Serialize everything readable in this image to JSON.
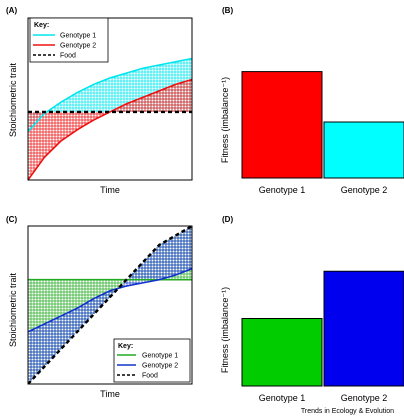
{
  "figure": {
    "credit": "Trends in Ecology & Evolution"
  },
  "chart_data": [
    {
      "panel": "(A)",
      "type": "line",
      "xlabel": "Time",
      "ylabel": "Stoichiometric trait",
      "legend_title": "Key:",
      "legend_position": "top-left",
      "x": [
        0,
        0.1,
        0.2,
        0.3,
        0.4,
        0.5,
        0.6,
        0.7,
        0.8,
        0.9,
        1
      ],
      "series": [
        {
          "name": "Genotype 1",
          "color": "#00e5ee",
          "style": "solid",
          "values": [
            0.3,
            0.41,
            0.48,
            0.54,
            0.59,
            0.63,
            0.66,
            0.69,
            0.71,
            0.73,
            0.75
          ]
        },
        {
          "name": "Genotype 2",
          "color": "#ee1111",
          "style": "solid",
          "values": [
            0.0,
            0.14,
            0.24,
            0.31,
            0.37,
            0.42,
            0.47,
            0.51,
            0.55,
            0.59,
            0.62
          ]
        },
        {
          "name": "Food",
          "color": "#000000",
          "style": "dashed",
          "values": [
            0.42,
            0.42,
            0.42,
            0.42,
            0.42,
            0.42,
            0.42,
            0.42,
            0.42,
            0.42,
            0.42
          ]
        }
      ],
      "shading": "vertical and horizontal hatching between each genotype and food line"
    },
    {
      "panel": "(B)",
      "type": "bar",
      "ylabel": "Fitness (imbalance⁻¹)",
      "categories": [
        "Genotype 1",
        "Genotype 2"
      ],
      "values": [
        0.76,
        0.4
      ],
      "colors": [
        "#ff0000",
        "#00ffff"
      ],
      "ylim": [
        0,
        1
      ]
    },
    {
      "panel": "(C)",
      "type": "line",
      "xlabel": "Time",
      "ylabel": "Stoichiometric trait",
      "legend_title": "Key:",
      "legend_position": "bottom-right",
      "x": [
        0,
        0.1,
        0.2,
        0.3,
        0.4,
        0.5,
        0.6,
        0.7,
        0.8,
        0.9,
        1
      ],
      "series": [
        {
          "name": "Genotype 1",
          "color": "#22aa22",
          "style": "solid",
          "values": [
            0.66,
            0.66,
            0.66,
            0.66,
            0.66,
            0.66,
            0.66,
            0.66,
            0.66,
            0.66,
            0.66
          ]
        },
        {
          "name": "Genotype 2",
          "color": "#1133cc",
          "style": "solid",
          "values": [
            0.33,
            0.38,
            0.43,
            0.48,
            0.54,
            0.59,
            0.62,
            0.64,
            0.66,
            0.69,
            0.73
          ]
        },
        {
          "name": "Food",
          "color": "#000000",
          "style": "dashed",
          "values": [
            0.0,
            0.11,
            0.22,
            0.33,
            0.44,
            0.55,
            0.66,
            0.77,
            0.88,
            0.94,
            1.0
          ]
        }
      ],
      "shading": "vertical and horizontal hatching between each genotype and food line"
    },
    {
      "panel": "(D)",
      "type": "bar",
      "ylabel": "Fitness (imbalance⁻¹)",
      "categories": [
        "Genotype 1",
        "Genotype 2"
      ],
      "values": [
        0.5,
        0.85
      ],
      "colors": [
        "#00cc00",
        "#0000ee"
      ],
      "ylim": [
        0,
        1
      ]
    }
  ]
}
